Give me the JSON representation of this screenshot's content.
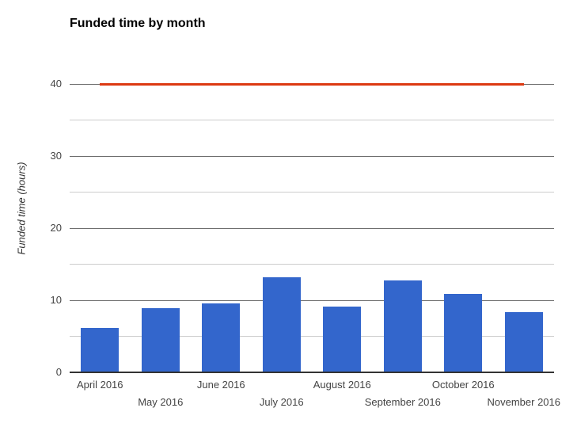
{
  "chart_data": {
    "type": "bar",
    "title": "Funded time by month",
    "categories": [
      "April 2016",
      "May 2016",
      "June 2016",
      "July 2016",
      "August 2016",
      "September 2016",
      "October 2016",
      "November 2016"
    ],
    "values": [
      6.1,
      8.9,
      9.6,
      13.2,
      9.1,
      12.8,
      10.9,
      8.3
    ],
    "reference_line": {
      "value": 40,
      "color": "#dc3912"
    },
    "xlabel": "",
    "ylabel": "Funded time (hours)",
    "ylim": [
      0,
      40
    ],
    "yticks": [
      0,
      10,
      20,
      30,
      40
    ],
    "minor_ticks": [
      5,
      15,
      25,
      35
    ],
    "grid": true,
    "legend": "none",
    "bar_color": "#3366cc"
  },
  "colors": {
    "bar": "#3366cc",
    "reference_line": "#dc3912",
    "grid_major": "#6e6e6e",
    "grid_minor": "#cccccc",
    "baseline": "#333333",
    "axis_text": "#444444",
    "title_text": "#000000",
    "background": "#ffffff"
  }
}
